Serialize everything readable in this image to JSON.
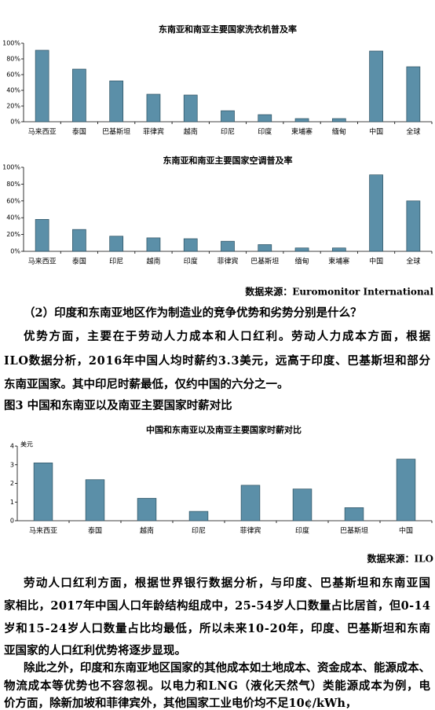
{
  "chart_data": [
    {
      "type": "bar",
      "title": "东南亚和南亚主要国家洗衣机普及率",
      "color": "#5b8fa8",
      "categories": [
        "马来西亚",
        "泰国",
        "巴基斯坦",
        "菲律宾",
        "越南",
        "印尼",
        "印度",
        "柬埔寨",
        "缅甸",
        "中国",
        "全球"
      ],
      "values": [
        91,
        67,
        52,
        35,
        34,
        14,
        9,
        4,
        4,
        90,
        70
      ],
      "ylim": [
        0,
        100
      ],
      "yticks": [
        {
          "value": 0,
          "label": "0%"
        },
        {
          "value": 20,
          "label": "20%"
        },
        {
          "value": 40,
          "label": "40%"
        },
        {
          "value": 60,
          "label": "60%"
        },
        {
          "value": 80,
          "label": "80%"
        },
        {
          "value": 100,
          "label": "100%"
        }
      ],
      "grid": false
    },
    {
      "type": "bar",
      "title": "东南亚和南亚主要国家空调普及率",
      "color": "#5b8fa8",
      "categories": [
        "马来西亚",
        "泰国",
        "印尼",
        "越南",
        "印度",
        "菲律宾",
        "巴基斯坦",
        "缅甸",
        "柬埔寨",
        "中国",
        "全球"
      ],
      "values": [
        38,
        26,
        18,
        16,
        15,
        12,
        8,
        4,
        4,
        91,
        60
      ],
      "ylim": [
        0,
        100
      ],
      "yticks": [
        {
          "value": 0,
          "label": "0%"
        },
        {
          "value": 20,
          "label": "20%"
        },
        {
          "value": 40,
          "label": "40%"
        },
        {
          "value": 60,
          "label": "60%"
        },
        {
          "value": 80,
          "label": "80%"
        },
        {
          "value": 100,
          "label": "100%"
        }
      ],
      "grid": false
    },
    {
      "type": "bar",
      "title": "中国和东南亚以及南亚主要国家时薪对比",
      "y_label": "美元",
      "color": "#5b8fa8",
      "categories": [
        "马来西亚",
        "泰国",
        "越南",
        "印尼",
        "菲律宾",
        "印度",
        "巴基斯坦",
        "中国"
      ],
      "values": [
        3.1,
        2.2,
        1.2,
        0.5,
        1.9,
        1.7,
        0.7,
        3.3
      ],
      "ylim": [
        0,
        4
      ],
      "yticks": [
        0,
        1,
        2,
        3,
        4
      ],
      "grid": false
    }
  ],
  "document": {
    "source_1": "数据来源：Euromonitor International",
    "question": "（2）印度和东南亚地区作为制造业的竞争优势和劣势分别是什么？",
    "paragraph_1": [
      "优势方面，主要在于劳动人力成本和人口红利。劳动人力成本方面，根据",
      "ILO数据分析，2016年中国人均时薪约3.3美元，远高于印度、巴基斯坦和部分",
      "东南亚国家。其中印尼时薪最低，仅约中国的六分之一。"
    ],
    "figure_caption": "图3  中国和东南亚以及南亚主要国家时薪对比",
    "source_2": "数据来源：ILO",
    "paragraph_2": [
      "劳动人口红利方面，根据世界银行数据分析，与印度、巴基斯坦和东南亚国",
      "家相比，2017年中国人口年龄结构组成中，25-54岁人口数量占比居首，但0-14",
      "岁和15-24岁人口数量占比均最低，所以未来10-20年，印度、巴基斯坦和东南",
      "亚国家的人口红利优势将逐步显现。"
    ],
    "paragraph_3": [
      "除此之外，印度和东南亚地区国家的其他成本如土地成本、资金成本、能源成本、",
      "物流成本等优势也不容忽视。以电力和LNG（液化天然气）类能源成本为例，电",
      "价方面，除新加坡和菲律宾外，其他国家工业电价均不足10¢/kWh，"
    ]
  }
}
